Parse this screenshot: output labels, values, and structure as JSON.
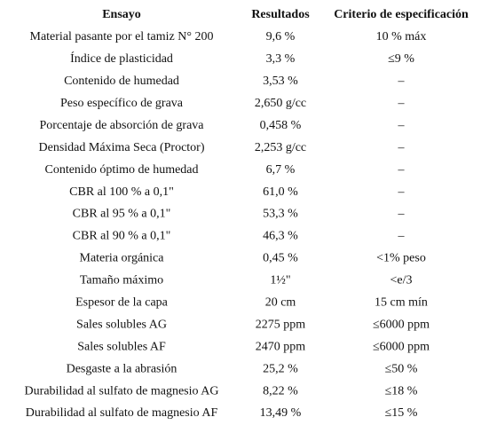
{
  "table": {
    "header": [
      "Ensayo",
      "Resultados",
      "Criterio de especificación"
    ],
    "rows": [
      [
        "Material pasante por el tamiz N° 200",
        "9,6 %",
        "10 % máx"
      ],
      [
        "Índice de plasticidad",
        "3,3 %",
        "≤9 %"
      ],
      [
        "Contenido de humedad",
        "3,53 %",
        "–"
      ],
      [
        "Peso específico de grava",
        "2,650 g/cc",
        "–"
      ],
      [
        "Porcentaje de absorción de grava",
        "0,458 %",
        "–"
      ],
      [
        "Densidad Máxima Seca (Proctor)",
        "2,253 g/cc",
        "–"
      ],
      [
        "Contenido óptimo de humedad",
        "6,7 %",
        "–"
      ],
      [
        "CBR al 100 % a 0,1\"",
        "61,0 %",
        "–"
      ],
      [
        "CBR al 95 % a 0,1\"",
        "53,3 %",
        "–"
      ],
      [
        "CBR al 90 % a 0,1\"",
        "46,3 %",
        "–"
      ],
      [
        "Materia orgánica",
        "0,45 %",
        "<1% peso"
      ],
      [
        "Tamaño máximo",
        "1½\"",
        "<e/3"
      ],
      [
        "Espesor de la capa",
        "20 cm",
        "15 cm mín"
      ],
      [
        "Sales solubles AG",
        "2275 ppm",
        "≤6000 ppm"
      ],
      [
        "Sales solubles AF",
        "2470 ppm",
        "≤6000 ppm"
      ],
      [
        "Desgaste a la abrasión",
        "25,2 %",
        "≤50 %"
      ],
      [
        "Durabilidad al sulfato de magnesio AG",
        "8,22 %",
        "≤18 %"
      ],
      [
        "Durabilidad al sulfato de magnesio AF",
        "13,49 %",
        "≤15 %"
      ]
    ]
  }
}
